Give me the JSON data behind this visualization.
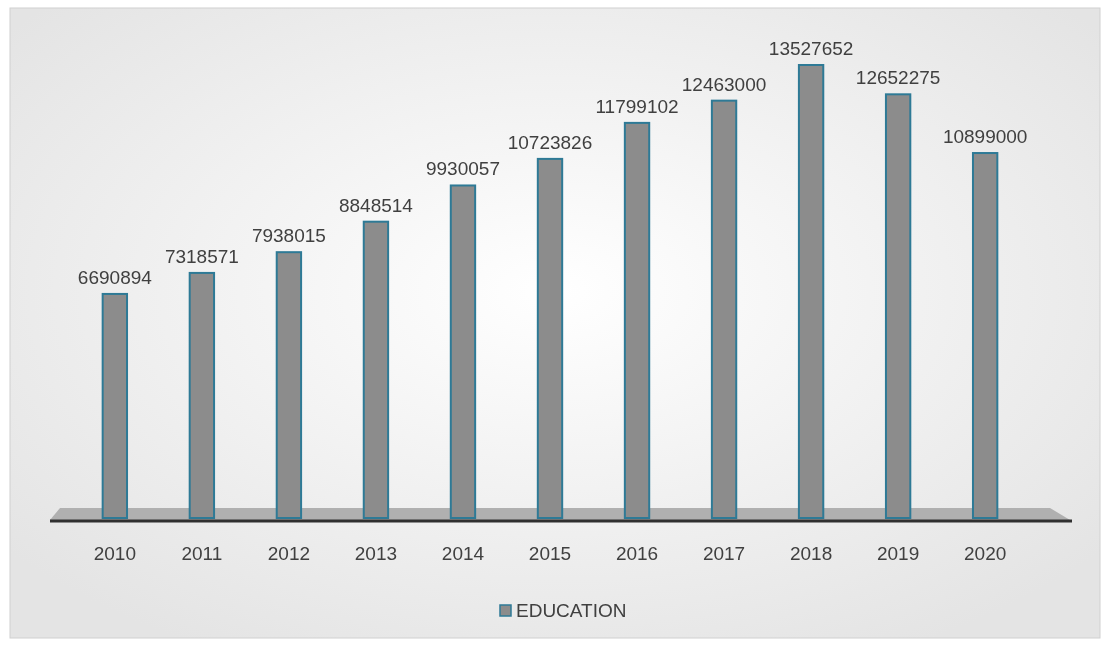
{
  "chart_data": {
    "type": "bar",
    "categories": [
      "2010",
      "2011",
      "2012",
      "2013",
      "2014",
      "2015",
      "2016",
      "2017",
      "2018",
      "2019",
      "2020"
    ],
    "series": [
      {
        "name": "EDUCATION",
        "color": "#8c8c8c",
        "values": [
          6690894,
          7318571,
          7938015,
          8848514,
          9930057,
          10723826,
          11799102,
          12463000,
          13527652,
          12652275,
          10899000
        ]
      }
    ],
    "data_labels": true,
    "legend": "bottom"
  }
}
